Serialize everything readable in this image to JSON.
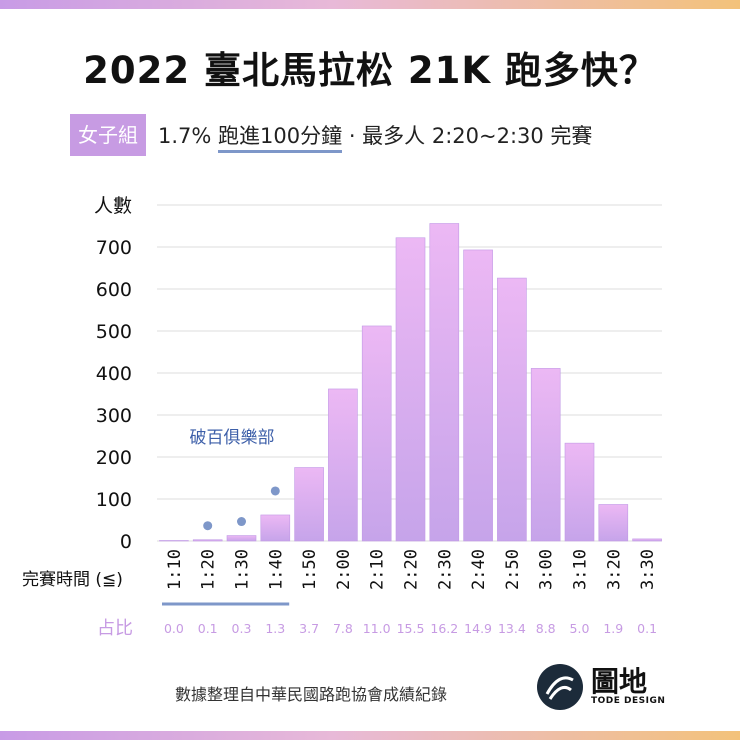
{
  "title": "2022 臺北馬拉松 21K 跑多快？",
  "subtitle": {
    "badge": "女子組",
    "pct": "1.7%",
    "underlined": "跑進100分鐘",
    "rest": " · 最多人 2:20~2:30 完賽"
  },
  "chart_data": {
    "type": "bar",
    "ylabel": "人數",
    "xlabel": "完賽時間 (≦)",
    "yticks": [
      0,
      100,
      200,
      300,
      400,
      500,
      600,
      700
    ],
    "ylim": [
      0,
      800
    ],
    "categories": [
      "1:10",
      "1:20",
      "1:30",
      "1:40",
      "1:50",
      "2:00",
      "2:10",
      "2:20",
      "2:30",
      "2:40",
      "2:50",
      "3:00",
      "3:10",
      "3:20",
      "3:30"
    ],
    "values": [
      0,
      3,
      13,
      62,
      175,
      362,
      512,
      722,
      756,
      693,
      626,
      411,
      233,
      87,
      5
    ],
    "share_label": "占比",
    "shares": [
      "0.0",
      "0.1",
      "0.3",
      "1.3",
      "3.7",
      "7.8",
      "11.0",
      "15.5",
      "16.2",
      "14.9",
      "13.4",
      "8.8",
      "5.0",
      "1.9",
      "0.1"
    ],
    "annotation": "破百俱樂部",
    "colors": {
      "bar_top": "#ecb8f4",
      "bar_bottom": "#c6a4ea",
      "accent": "#7e97c9",
      "share": "#c79be3"
    }
  },
  "footer": {
    "source": "數據整理自中華民國路跑協會成績紀錄"
  },
  "logo": {
    "name": "圖地",
    "sub": "TODE DESIGN"
  }
}
